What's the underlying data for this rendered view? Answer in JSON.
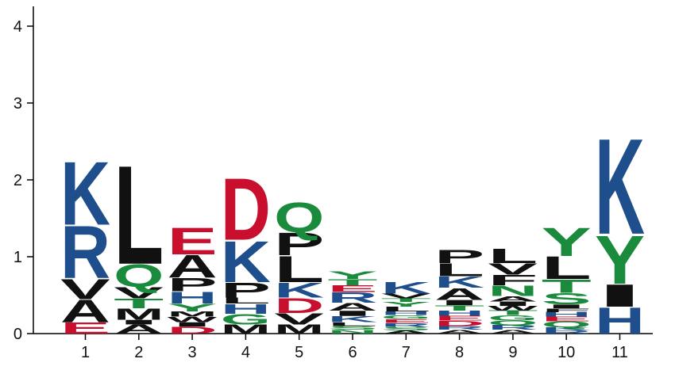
{
  "chart_data": {
    "type": "sequence-logo",
    "title": "",
    "xlabel": "",
    "ylabel": "",
    "ylim": [
      0,
      4.3
    ],
    "y_ticks": [
      "0",
      "1",
      "2",
      "3",
      "4"
    ],
    "grid": false,
    "colors": {
      "basic": "#1f4e8c",
      "acidic": "#c8102e",
      "hydrophobic": "#111111",
      "polar": "#1a8a3c"
    },
    "residue_classes": {
      "K": "basic",
      "R": "basic",
      "H": "basic",
      "D": "acidic",
      "E": "acidic",
      "Q": "polar",
      "N": "polar",
      "S": "polar",
      "T": "polar",
      "Y": "polar",
      "G": "polar",
      "C": "polar",
      "L": "hydrophobic",
      "V": "hydrophobic",
      "A": "hydrophobic",
      "P": "hydrophobic",
      "M": "hydrophobic",
      "I": "hydrophobic",
      "F": "hydrophobic",
      "W": "hydrophobic"
    },
    "positions": [
      {
        "label": "1",
        "stack": [
          {
            "letter": "E",
            "height": 0.15
          },
          {
            "letter": "A",
            "height": 0.3
          },
          {
            "letter": "V",
            "height": 0.27
          },
          {
            "letter": "R",
            "height": 0.7
          },
          {
            "letter": "K",
            "height": 0.85
          }
        ]
      },
      {
        "label": "2",
        "stack": [
          {
            "letter": "A",
            "height": 0.12
          },
          {
            "letter": "I",
            "height": 0.06
          },
          {
            "letter": "M",
            "height": 0.15
          },
          {
            "letter": "T",
            "height": 0.13
          },
          {
            "letter": "V",
            "height": 0.15
          },
          {
            "letter": "Q",
            "height": 0.3
          },
          {
            "letter": "L",
            "height": 1.32
          }
        ]
      },
      {
        "label": "3",
        "stack": [
          {
            "letter": "D",
            "height": 0.09
          },
          {
            "letter": "I",
            "height": 0.06
          },
          {
            "letter": "W",
            "height": 0.07
          },
          {
            "letter": "M",
            "height": 0.07
          },
          {
            "letter": "Y",
            "height": 0.1
          },
          {
            "letter": "H",
            "height": 0.16
          },
          {
            "letter": "P",
            "height": 0.18
          },
          {
            "letter": "A",
            "height": 0.3
          },
          {
            "letter": "E",
            "height": 0.36
          }
        ]
      },
      {
        "label": "4",
        "stack": [
          {
            "letter": "M",
            "height": 0.12
          },
          {
            "letter": "G",
            "height": 0.14
          },
          {
            "letter": "H",
            "height": 0.13
          },
          {
            "letter": "L",
            "height": 0.08
          },
          {
            "letter": "P",
            "height": 0.2
          },
          {
            "letter": "K",
            "height": 0.55
          },
          {
            "letter": "D",
            "height": 0.83
          }
        ]
      },
      {
        "label": "5",
        "stack": [
          {
            "letter": "M",
            "height": 0.12
          },
          {
            "letter": "V",
            "height": 0.15
          },
          {
            "letter": "D",
            "height": 0.2
          },
          {
            "letter": "K",
            "height": 0.2
          },
          {
            "letter": "L",
            "height": 0.35
          },
          {
            "letter": "P",
            "height": 0.3
          },
          {
            "letter": "Q",
            "height": 0.4
          }
        ]
      },
      {
        "label": "6",
        "stack": [
          {
            "letter": "N",
            "height": 0.05
          },
          {
            "letter": "S",
            "height": 0.05
          },
          {
            "letter": "L",
            "height": 0.05
          },
          {
            "letter": "K",
            "height": 0.08
          },
          {
            "letter": "I",
            "height": 0.07
          },
          {
            "letter": "A",
            "height": 0.1
          },
          {
            "letter": "R",
            "height": 0.14
          },
          {
            "letter": "E",
            "height": 0.09
          },
          {
            "letter": "T",
            "height": 0.08
          },
          {
            "letter": "Y",
            "height": 0.1
          }
        ]
      },
      {
        "label": "7",
        "stack": [
          {
            "letter": "A",
            "height": 0.04
          },
          {
            "letter": "S",
            "height": 0.05
          },
          {
            "letter": "R",
            "height": 0.05
          },
          {
            "letter": "E",
            "height": 0.05
          },
          {
            "letter": "G",
            "height": 0.05
          },
          {
            "letter": "H",
            "height": 0.05
          },
          {
            "letter": "L",
            "height": 0.06
          },
          {
            "letter": "Y",
            "height": 0.06
          },
          {
            "letter": "T",
            "height": 0.05
          },
          {
            "letter": "V",
            "height": 0.06
          },
          {
            "letter": "K",
            "height": 0.16
          }
        ]
      },
      {
        "label": "8",
        "stack": [
          {
            "letter": "A",
            "height": 0.05
          },
          {
            "letter": "R",
            "height": 0.05
          },
          {
            "letter": "D",
            "height": 0.07
          },
          {
            "letter": "E",
            "height": 0.06
          },
          {
            "letter": "H",
            "height": 0.07
          },
          {
            "letter": "T",
            "height": 0.07
          },
          {
            "letter": "I",
            "height": 0.07
          },
          {
            "letter": "A",
            "height": 0.16
          },
          {
            "letter": "K",
            "height": 0.15
          },
          {
            "letter": "L",
            "height": 0.17
          },
          {
            "letter": "P",
            "height": 0.18
          }
        ]
      },
      {
        "label": "9",
        "stack": [
          {
            "letter": "A",
            "height": 0.05
          },
          {
            "letter": "R",
            "height": 0.06
          },
          {
            "letter": "Q",
            "height": 0.06
          },
          {
            "letter": "G",
            "height": 0.07
          },
          {
            "letter": "T",
            "height": 0.06
          },
          {
            "letter": "W",
            "height": 0.06
          },
          {
            "letter": "I",
            "height": 0.06
          },
          {
            "letter": "A",
            "height": 0.07
          },
          {
            "letter": "N",
            "height": 0.14
          },
          {
            "letter": "F",
            "height": 0.14
          },
          {
            "letter": "V",
            "height": 0.15
          },
          {
            "letter": "L",
            "height": 0.19
          }
        ]
      },
      {
        "label": "10",
        "stack": [
          {
            "letter": "R",
            "height": 0.04
          },
          {
            "letter": "K",
            "height": 0.04
          },
          {
            "letter": "Q",
            "height": 0.08
          },
          {
            "letter": "E",
            "height": 0.06
          },
          {
            "letter": "H",
            "height": 0.06
          },
          {
            "letter": "F",
            "height": 0.05
          },
          {
            "letter": "I",
            "height": 0.05
          },
          {
            "letter": "S",
            "height": 0.15
          },
          {
            "letter": "T",
            "height": 0.18
          },
          {
            "letter": "L",
            "height": 0.3
          },
          {
            "letter": "Y",
            "height": 0.38
          }
        ]
      },
      {
        "label": "11",
        "stack": [
          {
            "letter": "H",
            "height": 0.35
          },
          {
            "letter": "I",
            "height": 0.3
          },
          {
            "letter": "Y",
            "height": 0.65
          },
          {
            "letter": "K",
            "height": 1.28
          }
        ]
      }
    ]
  }
}
